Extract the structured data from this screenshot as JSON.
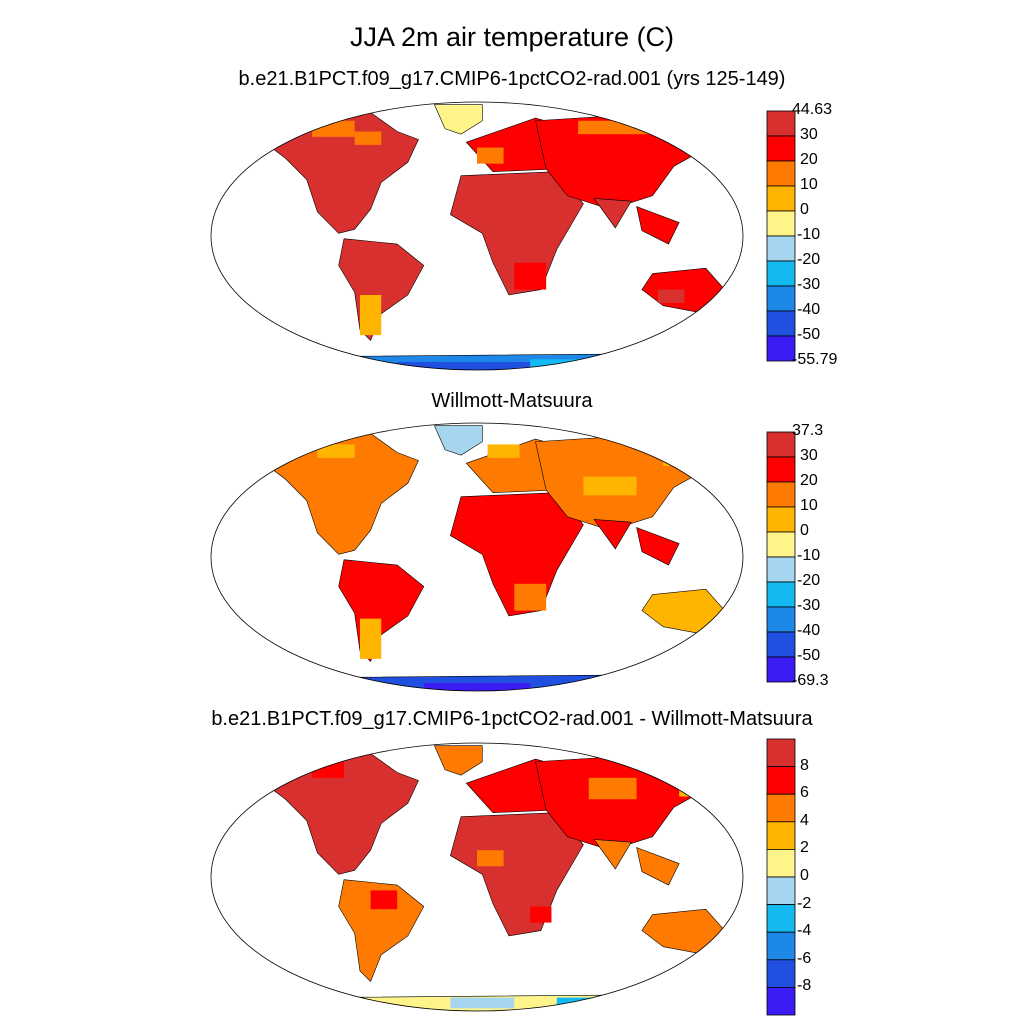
{
  "figure": {
    "title": "JJA 2m air temperature (C)"
  },
  "panels": [
    {
      "subtitle": "b.e21.B1PCT.f09_g17.CMIP6-1pctCO2-rad.001 (yrs 125-149)",
      "kind": "model",
      "colorbar": {
        "labels": [
          "44.63",
          "30",
          "20",
          "10",
          "0",
          "-10",
          "-20",
          "-30",
          "-40",
          "-50",
          "-55.79"
        ],
        "label_position": "boundary",
        "colors": [
          "#d7302f",
          "#ff0000",
          "#ff7a00",
          "#ffb400",
          "#fff48a",
          "#a6d5f0",
          "#13b9f0",
          "#1e88e8",
          "#2050e0",
          "#3c1cf5"
        ]
      }
    },
    {
      "subtitle": "Willmott-Matsuura",
      "kind": "obs",
      "colorbar": {
        "labels": [
          "37.3",
          "30",
          "20",
          "10",
          "0",
          "-10",
          "-20",
          "-30",
          "-40",
          "-50",
          "-69.3"
        ],
        "label_position": "boundary",
        "colors": [
          "#d7302f",
          "#ff0000",
          "#ff7a00",
          "#ffb400",
          "#fff48a",
          "#a6d5f0",
          "#13b9f0",
          "#1e88e8",
          "#2050e0",
          "#3c1cf5"
        ]
      }
    },
    {
      "subtitle": "b.e21.B1PCT.f09_g17.CMIP6-1pctCO2-rad.001 - Willmott-Matsuura",
      "kind": "diff",
      "colorbar": {
        "labels": [
          "8",
          "6",
          "4",
          "2",
          "0",
          "-2",
          "-4",
          "-6",
          "-8"
        ],
        "label_position": "interior",
        "colors": [
          "#d7302f",
          "#ff0000",
          "#ff7a00",
          "#ffb400",
          "#fff48a",
          "#a6d5f0",
          "#13b9f0",
          "#1e88e8",
          "#2050e0",
          "#3c1cf5"
        ]
      }
    }
  ],
  "regions": {
    "north_america": "North America",
    "greenland": "Greenland",
    "south_america": "South America",
    "africa": "Africa",
    "europe": "Europe",
    "asia": "Asia",
    "india": "India",
    "southeast_asia": "Southeast Asia",
    "australia": "Australia",
    "antarctica": "Antarctica"
  }
}
